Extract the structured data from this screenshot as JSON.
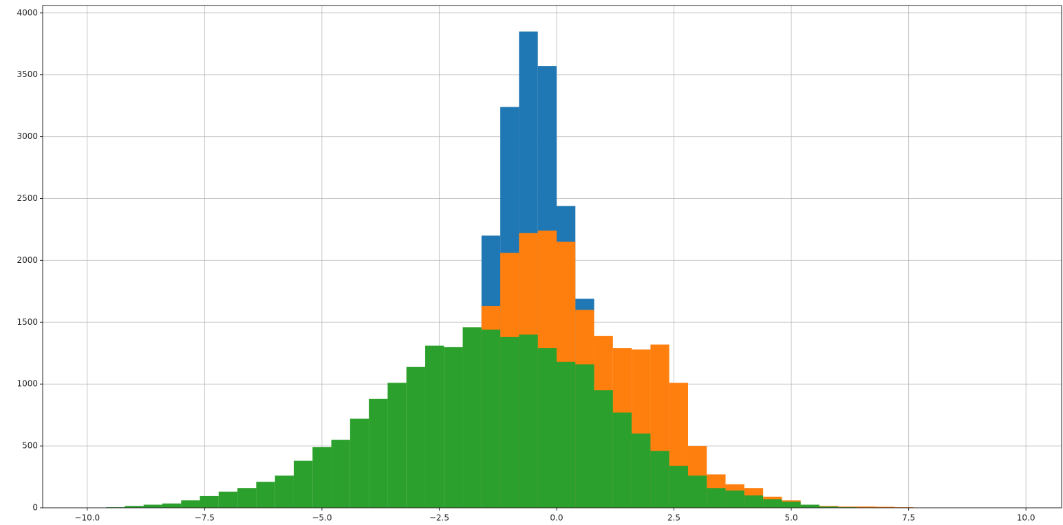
{
  "chart_data": {
    "type": "histogram",
    "bins": [
      -9.6,
      -9.2,
      -8.8,
      -8.4,
      -8.0,
      -7.6,
      -7.2,
      -6.8,
      -6.4,
      -6.0,
      -5.6,
      -5.2,
      -4.8,
      -4.4,
      -4.0,
      -3.6,
      -3.2,
      -2.8,
      -2.4,
      -2.0,
      -1.6,
      -1.2,
      -0.8,
      -0.4,
      0.0,
      0.4,
      0.8,
      1.2,
      1.6,
      2.0,
      2.4,
      2.8,
      3.2,
      3.6,
      4.0,
      4.4,
      4.8,
      5.2,
      5.6,
      6.0,
      6.4,
      6.8,
      7.2,
      7.6
    ],
    "series": [
      {
        "color": "#1f77b4",
        "values": [
          0,
          0,
          0,
          0,
          0,
          0,
          0,
          0,
          0,
          0,
          0,
          0,
          0,
          0,
          0,
          0,
          0,
          0,
          0,
          0,
          2200,
          3240,
          3850,
          3570,
          2440,
          1690,
          0,
          0,
          0,
          0,
          0,
          0,
          0,
          0,
          0,
          0,
          0,
          0,
          0,
          0,
          0,
          0,
          0
        ]
      },
      {
        "color": "#ff7f0e",
        "values": [
          0,
          0,
          0,
          0,
          0,
          0,
          0,
          0,
          0,
          0,
          0,
          0,
          0,
          0,
          0,
          0,
          0,
          0,
          0,
          0,
          1630,
          2060,
          2220,
          2240,
          2150,
          1600,
          1390,
          1290,
          1280,
          1320,
          1010,
          500,
          270,
          190,
          160,
          90,
          60,
          25,
          15,
          10,
          10,
          8,
          5
        ]
      },
      {
        "color": "#2ca02c",
        "values": [
          5,
          15,
          25,
          35,
          60,
          95,
          130,
          160,
          210,
          260,
          380,
          490,
          550,
          720,
          880,
          1010,
          1140,
          1310,
          1300,
          1460,
          1440,
          1380,
          1400,
          1290,
          1180,
          1160,
          950,
          770,
          600,
          460,
          340,
          260,
          160,
          140,
          100,
          70,
          50,
          25,
          10,
          5,
          3,
          2,
          1
        ]
      }
    ],
    "xlim": [
      -10.95,
      10.76
    ],
    "ylim": [
      0,
      4060
    ],
    "xticks": [
      {
        "value": -10,
        "label": "−10.0"
      },
      {
        "value": -7.5,
        "label": "−7.5"
      },
      {
        "value": -5,
        "label": "−5.0"
      },
      {
        "value": -2.5,
        "label": "−2.5"
      },
      {
        "value": 0,
        "label": "0.0"
      },
      2.5,
      {
        "value": 5,
        "label": "5.0"
      },
      7.5,
      {
        "value": 10,
        "label": "10.0"
      }
    ],
    "yticks": [
      0,
      500,
      1000,
      1500,
      2000,
      2500,
      3000,
      3500,
      4000
    ],
    "grid": true
  }
}
